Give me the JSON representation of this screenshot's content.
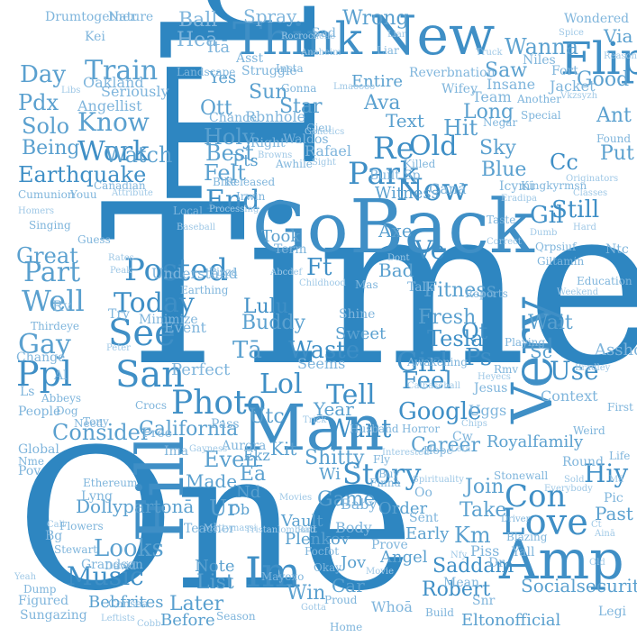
{
  "colors": {
    "primary": "#2e86c1",
    "mid": "#5aa0cf",
    "light": "#9fc8e6",
    "background": "#ffffff"
  },
  "words": [
    "Time",
    "Thank",
    "One",
    "Man",
    "Back",
    "Go",
    "Think",
    "New",
    "Fill",
    "Very",
    "Love",
    "Amp",
    "Im",
    "Photo",
    "San",
    "See",
    "Posted",
    "Today",
    "Well",
    "Part",
    "Earthquake",
    "Work",
    "Know",
    "Train",
    "Day",
    "Watch",
    "Music",
    "Looks",
    "Consider",
    "California",
    "Lol",
    "Tell",
    "Want",
    "Story",
    "Girl",
    "Google",
    "Feel",
    "Old",
    "Now",
    "Park",
    "End",
    "Waste",
    "Re",
    "Hit",
    "Flip",
    "Cc",
    "Sky",
    "Blue",
    "Gil",
    "Still",
    "Use",
    "Ps",
    "Tesla",
    "Qt",
    "Wait",
    "Fresh",
    "Fitness",
    "Saddam",
    "Robert",
    "Km",
    "Take",
    "Join",
    "Past",
    "Hiy",
    "Con",
    "Royalfamily",
    "Socialsecurity",
    "Eltonofficial",
    "Career",
    "Game",
    "Ir",
    "Kit",
    "Ur",
    "Note",
    "List",
    "Later",
    "Before",
    "Win",
    "Plenkov",
    "Vault",
    "Dollypartonā",
    "Bebfrites",
    "Lulu",
    "Tā",
    "Buddy",
    "Utc",
    "Shitty",
    "Year",
    "Seems",
    "Perfect",
    "Gay",
    "Ppl",
    "Pdx",
    "Solo",
    "Being",
    "Great",
    "Holy",
    "Felt",
    "Best",
    "Pts",
    "Star",
    "Ava",
    "Text",
    "Long",
    "Saw",
    "Wanna",
    "Wrong",
    "Spray",
    "Ball",
    "Heā",
    "Itā",
    "Yes",
    "Sun",
    "Ott",
    "Struggle",
    "Entire",
    "Insane",
    "Team",
    "Asst",
    "Ft",
    "Ve",
    "Axe",
    "Bad",
    "Term",
    "Took",
    "Witness",
    "Built",
    "Killed",
    "Sp",
    "Canā",
    "Good",
    "Via",
    "Ant",
    "Put",
    "Found",
    "Context",
    "Asshole",
    "Sc",
    "Uggs",
    "Jesus",
    "Reports",
    "Playing",
    "Awakening",
    "Shine",
    "Sweet",
    "Event",
    "Minimize",
    "Understand",
    "Earthing",
    "Pizza",
    "Crocs",
    "Free",
    "Aurora",
    "Even",
    "Made",
    "Teacher",
    "Pass",
    "Ima",
    "Ur",
    "Angel",
    "Car",
    "Jov",
    "Prove",
    "Body",
    "Baby",
    "Order",
    "Early",
    "Sent",
    "Oo",
    "Stonewall",
    "Hope",
    "Horror",
    "Husband",
    "Mean",
    "Snr",
    "Piss",
    "Dr",
    "Yall",
    "Blazing",
    "Driver",
    "Round",
    "Chips",
    "Trick",
    "Dumb",
    "Talk",
    "Mas",
    "Childhood",
    "Taste",
    "Correct",
    "Rmv",
    "Heyecs",
    "Calbaseball",
    "Icymi",
    "Kingkyrmsn",
    "Eradipa",
    "Originators",
    "Classes",
    "Hard",
    "Ntc",
    "Education",
    "Qrpsiuf",
    "Giltamin",
    "Jacket",
    "Fort",
    "Negar",
    "Special",
    "Another",
    "Wifey",
    "Reverbnation",
    "Niles",
    "Truck",
    "Liar",
    "Insta",
    "Rocrochelle",
    "Anaheim",
    "Landscape",
    "Seriously",
    "Angellist",
    "Oakland",
    "Homers",
    "Canadian",
    "Cumunion",
    "Youu",
    "Attribute",
    "Singing",
    "Guess",
    "Rates",
    "Peak",
    "Local",
    "Baseball",
    "Released",
    "Bike",
    "Irwin",
    "Processing",
    "Chance",
    "Rbnhole",
    "Waldos",
    "Rafael",
    "Gjeu",
    "Genetics",
    "Nature",
    "Drumtogether",
    "Kei",
    "Libs",
    "Gonna",
    "Awhile",
    "Sight",
    "Right",
    "Browns",
    "Abcdef",
    "Kaeyrus",
    "Gayness",
    "Mattymassi",
    "Tristanlombard",
    "Lyng",
    "Ethereum",
    "Flowers",
    "Stewart",
    "Grandson",
    "David",
    "Figured",
    "Sungazing",
    "Dump",
    "Yeah",
    "Cobb",
    "Season",
    "Leftists",
    "Conseā",
    "Bg",
    "Cali",
    "Ls",
    "People",
    "Global",
    "Change",
    "Peter",
    "Try",
    "Dog",
    "Need",
    "Tony",
    "Nme",
    "Pov",
    "Abbeys",
    "Thirdeye",
    "Rv",
    "Al",
    "Whoā",
    "Movie",
    "Okay",
    "Mayexo",
    "Focfot",
    "Eā",
    "Nd",
    "Db",
    "Ekz",
    "Ratt",
    "Movies",
    "Proud",
    "Gotta",
    "Wi",
    "Spirituality",
    "Finna",
    "Interested",
    "Dont",
    "Buy",
    "Fly",
    "Home",
    "Build",
    "Legi",
    "Pic",
    "Weird",
    "First",
    "Life",
    "Sold",
    "Old",
    "Everybody",
    "Ainā",
    "Mā",
    "Bradley",
    "Nfy",
    "Letā",
    "Cw",
    "Lmaoooo",
    "Sad",
    "Liar",
    "Wondered",
    "Reasons",
    "Spice",
    "Vkzsyzh",
    "Weekend",
    "Ct"
  ]
}
